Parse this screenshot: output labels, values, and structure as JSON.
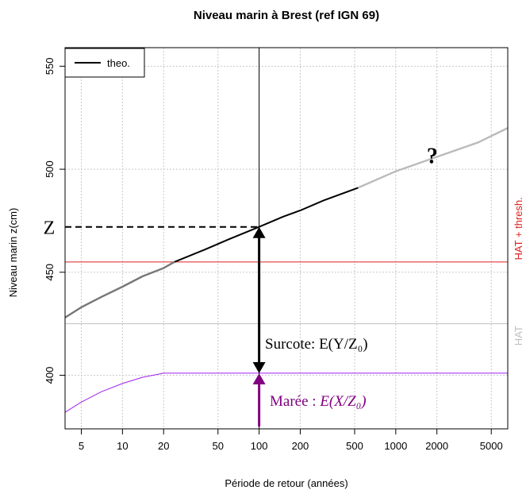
{
  "chart_data": {
    "type": "line",
    "title": "Niveau marin à Brest (ref IGN 69)",
    "xlabel": "Période de retour (années)",
    "ylabel": "Niveau marin z(cm)",
    "x_scale": "log",
    "xlim": [
      3.8,
      6600
    ],
    "ylim": [
      374,
      559
    ],
    "x_ticks": [
      5,
      10,
      20,
      50,
      100,
      200,
      500,
      1000,
      2000,
      5000
    ],
    "x_tick_labels": [
      "5",
      "10",
      "20",
      "50",
      "100",
      "200",
      "500",
      "1000",
      "2000",
      "5000"
    ],
    "y_ticks": [
      400,
      450,
      500,
      550
    ],
    "y_tick_labels": [
      "400",
      "450",
      "500",
      "550"
    ],
    "grid": true,
    "legend": {
      "placement": "top-left",
      "entries": [
        {
          "label": "theo.",
          "color": "#000000"
        }
      ]
    },
    "series": [
      {
        "name": "theo.",
        "color": "#000000",
        "points": [
          [
            24,
            455
          ],
          [
            40,
            461
          ],
          [
            60,
            466
          ],
          [
            100,
            472
          ],
          [
            150,
            477
          ],
          [
            200,
            480
          ],
          [
            300,
            485
          ],
          [
            530,
            491
          ]
        ]
      },
      {
        "color": "#777777",
        "points": [
          [
            3.8,
            428
          ],
          [
            5,
            433
          ],
          [
            7,
            438
          ],
          [
            10,
            443
          ],
          [
            14,
            448
          ],
          [
            20,
            452
          ],
          [
            24,
            455
          ]
        ]
      },
      {
        "color": "#bbbbbb",
        "points": [
          [
            530,
            491
          ],
          [
            1000,
            499
          ],
          [
            2000,
            506
          ],
          [
            4000,
            513
          ],
          [
            6600,
            520
          ]
        ]
      },
      {
        "color": "#a020f0",
        "points": [
          [
            3.8,
            382
          ],
          [
            5,
            387
          ],
          [
            7,
            392
          ],
          [
            10,
            396
          ],
          [
            14,
            399
          ],
          [
            20,
            401
          ],
          [
            6600,
            401
          ]
        ]
      }
    ],
    "reference_lines": [
      {
        "value": 455,
        "label": "HAT + thresh.",
        "color": "#dd2020"
      },
      {
        "value": 425,
        "label": "HAT",
        "color": "#c0c0c0"
      }
    ],
    "marker_x": 100,
    "z_level": 472,
    "annotations": {
      "z_label": "Z",
      "question_mark": "?",
      "surcote_label": "Surcote: E(Y/Z₀)",
      "maree_label": "Marée : ",
      "maree_formula": "E(X/Z₀)",
      "surcote_color": "#000000",
      "maree_color": "#800080"
    }
  }
}
